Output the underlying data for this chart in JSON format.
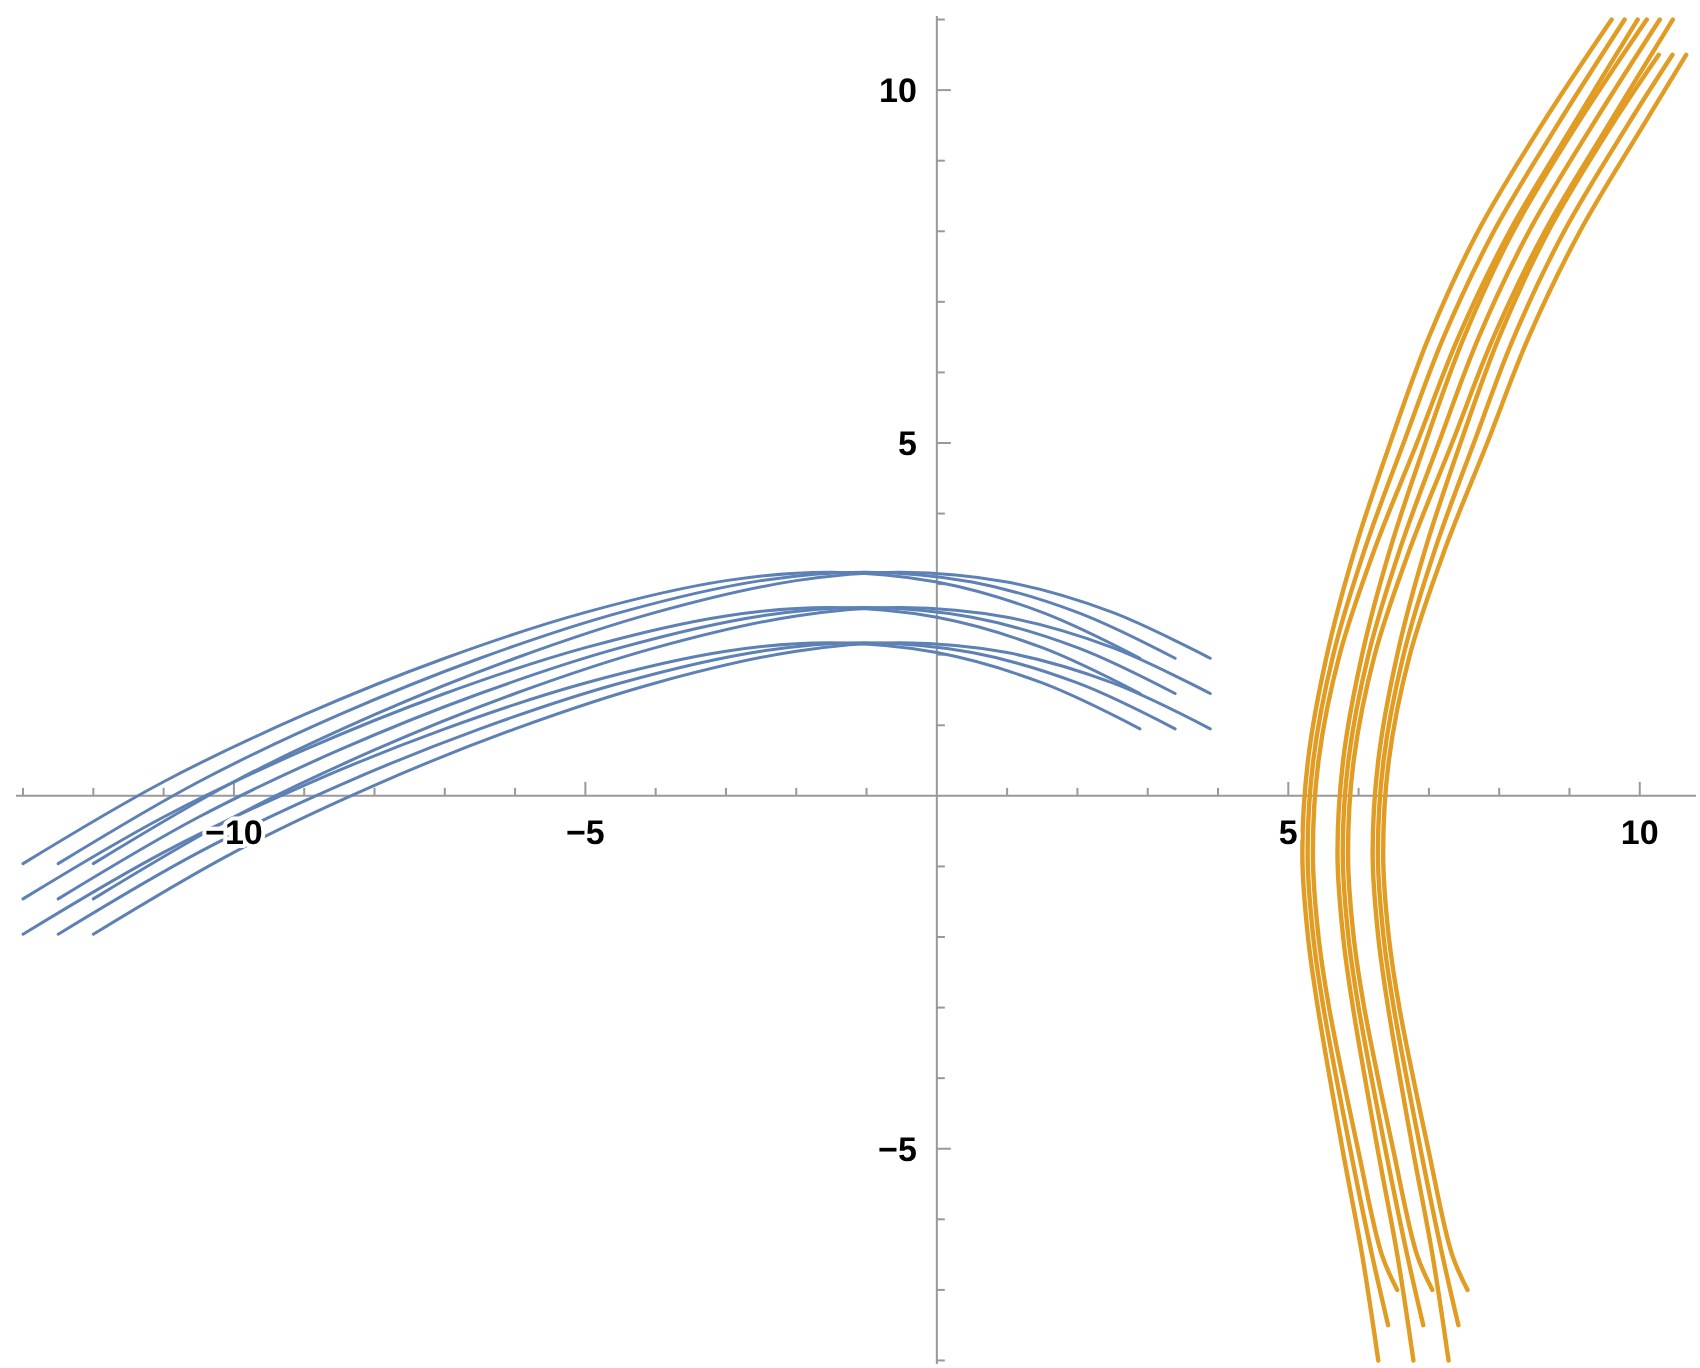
{
  "chart_data": {
    "type": "line",
    "xlim": [
      -13.1,
      10.8
    ],
    "ylim": [
      -8.05,
      11.05
    ],
    "xticks": [
      {
        "value": -13,
        "label": null
      },
      {
        "value": -12,
        "label": null
      },
      {
        "value": -11,
        "label": null
      },
      {
        "value": -10,
        "label": "−10"
      },
      {
        "value": -9,
        "label": null
      },
      {
        "value": -8,
        "label": null
      },
      {
        "value": -7,
        "label": null
      },
      {
        "value": -6,
        "label": null
      },
      {
        "value": -5,
        "label": "−5"
      },
      {
        "value": -4,
        "label": null
      },
      {
        "value": -3,
        "label": null
      },
      {
        "value": -2,
        "label": null
      },
      {
        "value": -1,
        "label": null
      },
      {
        "value": 1,
        "label": null
      },
      {
        "value": 2,
        "label": null
      },
      {
        "value": 3,
        "label": null
      },
      {
        "value": 4,
        "label": null
      },
      5,
      {
        "value": 6,
        "label": null
      },
      {
        "value": 7,
        "label": null
      },
      {
        "value": 8,
        "label": null
      },
      {
        "value": 9,
        "label": null
      },
      10
    ],
    "yticks": [
      {
        "value": -8,
        "label": null
      },
      {
        "value": -7,
        "label": null
      },
      {
        "value": -6,
        "label": null
      },
      {
        "value": -5,
        "label": "−5"
      },
      {
        "value": -4,
        "label": null
      },
      {
        "value": -3,
        "label": null
      },
      {
        "value": -2,
        "label": null
      },
      {
        "value": -1,
        "label": null
      },
      {
        "value": 1,
        "label": null
      },
      {
        "value": 2,
        "label": null
      },
      {
        "value": 3,
        "label": null
      },
      {
        "value": 4,
        "label": null
      },
      5,
      {
        "value": 6,
        "label": null
      },
      {
        "value": 7,
        "label": null
      },
      {
        "value": 8,
        "label": null
      },
      {
        "value": 9,
        "label": null
      },
      10,
      {
        "value": 11,
        "label": null
      }
    ],
    "grid": false,
    "marker": "none",
    "line_style": "solid",
    "series": [
      {
        "color": "#5e81b5",
        "x": [
          -12,
          -10,
          -8,
          -6,
          -4,
          -2,
          -0.5,
          1,
          2.5,
          3.89
        ],
        "values": [
          -0.96,
          0.2,
          1.15,
          1.95,
          2.6,
          3.05,
          3.17,
          3.03,
          2.6,
          1.95
        ]
      },
      {
        "color": "#5e81b5",
        "x": [
          -12,
          -10,
          -8,
          -6,
          -4,
          -2,
          -0.5,
          1,
          2.5,
          3.89
        ],
        "values": [
          -1.46,
          -0.3,
          0.65,
          1.45,
          2.1,
          2.55,
          2.67,
          2.53,
          2.1,
          1.45
        ]
      },
      {
        "color": "#5e81b5",
        "x": [
          -12,
          -10,
          -8,
          -6,
          -4,
          -2,
          -0.5,
          1,
          2.5,
          3.89
        ],
        "values": [
          -1.96,
          -0.8,
          0.15,
          0.95,
          1.6,
          2.05,
          2.17,
          2.03,
          1.6,
          0.95
        ]
      },
      {
        "color": "#5e81b5",
        "x": [
          -12.5,
          -10.5,
          -8.5,
          -6.5,
          -4.5,
          -2.5,
          -1,
          0.5,
          2,
          3.39
        ],
        "values": [
          -0.96,
          0.2,
          1.15,
          1.95,
          2.6,
          3.05,
          3.17,
          3.03,
          2.6,
          1.95
        ]
      },
      {
        "color": "#5e81b5",
        "x": [
          -12.5,
          -10.5,
          -8.5,
          -6.5,
          -4.5,
          -2.5,
          -1,
          0.5,
          2,
          3.39
        ],
        "values": [
          -1.46,
          -0.3,
          0.65,
          1.45,
          2.1,
          2.55,
          2.67,
          2.53,
          2.1,
          1.45
        ]
      },
      {
        "color": "#5e81b5",
        "x": [
          -12.5,
          -10.5,
          -8.5,
          -6.5,
          -4.5,
          -2.5,
          -1,
          0.5,
          2,
          3.39
        ],
        "values": [
          -1.96,
          -0.8,
          0.15,
          0.95,
          1.6,
          2.05,
          2.17,
          2.03,
          1.6,
          0.95
        ]
      },
      {
        "color": "#5e81b5",
        "x": [
          -13,
          -11,
          -9,
          -7,
          -5,
          -3,
          -1.5,
          0,
          1.5,
          2.89
        ],
        "values": [
          -0.96,
          0.2,
          1.15,
          1.95,
          2.6,
          3.05,
          3.17,
          3.03,
          2.6,
          1.95
        ]
      },
      {
        "color": "#5e81b5",
        "x": [
          -13,
          -11,
          -9,
          -7,
          -5,
          -3,
          -1.5,
          0,
          1.5,
          2.89
        ],
        "values": [
          -1.46,
          -0.3,
          0.65,
          1.45,
          2.1,
          2.55,
          2.67,
          2.53,
          2.1,
          1.45
        ]
      },
      {
        "color": "#5e81b5",
        "x": [
          -13,
          -11,
          -9,
          -7,
          -5,
          -3,
          -1.5,
          0,
          1.5,
          2.89
        ],
        "values": [
          -1.96,
          -0.8,
          0.15,
          0.95,
          1.6,
          2.05,
          2.17,
          2.03,
          1.6,
          0.95
        ]
      },
      {
        "color": "#e19c24",
        "x": [
          9.6,
          8.6,
          7.7,
          7.0,
          6.45,
          5.95,
          5.55,
          5.28,
          5.2,
          5.28,
          5.42,
          5.77,
          6.05,
          6.28
        ],
        "values": [
          11,
          9.5,
          8,
          6.5,
          5,
          3.5,
          2,
          0.5,
          -0.85,
          -2,
          -3,
          -5,
          -6.5,
          -8
        ]
      },
      {
        "color": "#e19c24",
        "x": [
          9.785,
          8.825,
          7.925,
          7.21,
          6.64,
          6.09,
          5.64,
          5.355,
          5.275,
          5.355,
          5.5,
          5.88,
          6.19,
          6.42
        ],
        "values": [
          11,
          9.5,
          8,
          6.5,
          5,
          3.5,
          2,
          0.5,
          -0.85,
          -2,
          -3,
          -5,
          -6.5,
          -7.5
        ]
      },
      {
        "color": "#e19c24",
        "x": [
          9.97,
          9.05,
          8.15,
          7.42,
          6.83,
          6.23,
          5.73,
          5.43,
          5.35,
          5.43,
          5.58,
          5.99,
          6.33,
          6.55
        ],
        "values": [
          11,
          9.5,
          8,
          6.5,
          5,
          3.5,
          2,
          0.5,
          -0.85,
          -2,
          -3,
          -5,
          -6.5,
          -7
        ]
      },
      {
        "color": "#e19c24",
        "x": [
          10.1,
          9.1,
          8.2,
          7.5,
          6.95,
          6.45,
          6.05,
          5.78,
          5.7,
          5.78,
          5.92,
          6.27,
          6.55,
          6.78
        ],
        "values": [
          11,
          9.5,
          8,
          6.5,
          5,
          3.5,
          2,
          0.5,
          -0.85,
          -2,
          -3,
          -5,
          -6.5,
          -8
        ]
      },
      {
        "color": "#e19c24",
        "x": [
          10.285,
          9.325,
          8.425,
          7.71,
          7.14,
          6.59,
          6.14,
          5.855,
          5.775,
          5.855,
          6.0,
          6.38,
          6.69,
          6.92
        ],
        "values": [
          11,
          9.5,
          8,
          6.5,
          5,
          3.5,
          2,
          0.5,
          -0.85,
          -2,
          -3,
          -5,
          -6.5,
          -7.5
        ]
      },
      {
        "color": "#e19c24",
        "x": [
          10.47,
          9.55,
          8.65,
          7.92,
          7.33,
          6.73,
          6.23,
          5.93,
          5.85,
          5.93,
          6.08,
          6.49,
          6.83,
          7.05
        ],
        "values": [
          11,
          9.5,
          8,
          6.5,
          5,
          3.5,
          2,
          0.5,
          -0.85,
          -2,
          -3,
          -5,
          -6.5,
          -7
        ]
      },
      {
        "color": "#e19c24",
        "x": [
          10.27,
          9.6,
          8.7,
          8.0,
          7.45,
          6.95,
          6.55,
          6.28,
          6.2,
          6.28,
          6.42,
          6.77,
          7.05,
          7.28
        ],
        "values": [
          10.5,
          9.5,
          8,
          6.5,
          5,
          3.5,
          2,
          0.5,
          -0.85,
          -2,
          -3,
          -5,
          -6.5,
          -8
        ]
      },
      {
        "color": "#e19c24",
        "x": [
          10.465,
          9.825,
          8.925,
          8.21,
          7.64,
          7.09,
          6.64,
          6.355,
          6.275,
          6.355,
          6.5,
          6.88,
          7.19,
          7.42
        ],
        "values": [
          10.5,
          9.5,
          8,
          6.5,
          5,
          3.5,
          2,
          0.5,
          -0.85,
          -2,
          -3,
          -5,
          -6.5,
          -7.5
        ]
      },
      {
        "color": "#e19c24",
        "x": [
          10.66,
          10.05,
          9.15,
          8.42,
          7.83,
          7.23,
          6.73,
          6.43,
          6.35,
          6.43,
          6.58,
          6.99,
          7.33,
          7.55
        ],
        "values": [
          10.5,
          9.5,
          8,
          6.5,
          5,
          3.5,
          2,
          0.5,
          -0.85,
          -2,
          -3,
          -5,
          -6.5,
          -7
        ]
      }
    ]
  }
}
